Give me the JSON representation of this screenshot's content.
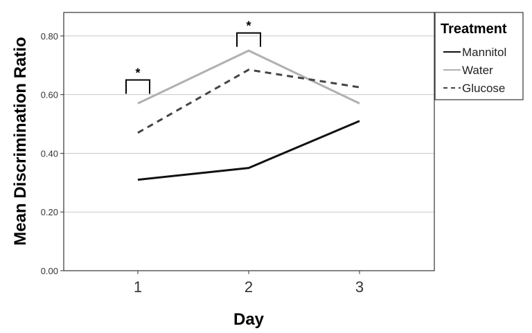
{
  "chart_data": {
    "type": "line",
    "xlabel": "Day",
    "ylabel": "Mean Discrimination Ratio",
    "x": [
      1,
      2,
      3
    ],
    "x_tick_labels": [
      "1",
      "2",
      "3"
    ],
    "ylim": [
      0,
      0.88
    ],
    "y_ticks": [
      0,
      0.2,
      0.4,
      0.6,
      0.8
    ],
    "y_tick_labels": [
      "0.00",
      "0.20",
      "0.40",
      "0.60",
      "0.80"
    ],
    "grid": "horizontal",
    "legend": {
      "title": "Treatment",
      "placement": "right"
    },
    "series": [
      {
        "name": "Mannitol",
        "values": [
          0.31,
          0.35,
          0.51
        ],
        "color": "#111111",
        "style": "solid"
      },
      {
        "name": "Water",
        "values": [
          0.57,
          0.75,
          0.57
        ],
        "color": "#b0b0b0",
        "style": "solid"
      },
      {
        "name": "Glucose",
        "values": [
          0.47,
          0.685,
          0.625
        ],
        "color": "#444444",
        "style": "dashed"
      }
    ],
    "annotations": [
      {
        "text": "*",
        "x": 1,
        "bracket_y": 0.65
      },
      {
        "text": "*",
        "x": 2,
        "bracket_y": 0.81
      }
    ]
  }
}
